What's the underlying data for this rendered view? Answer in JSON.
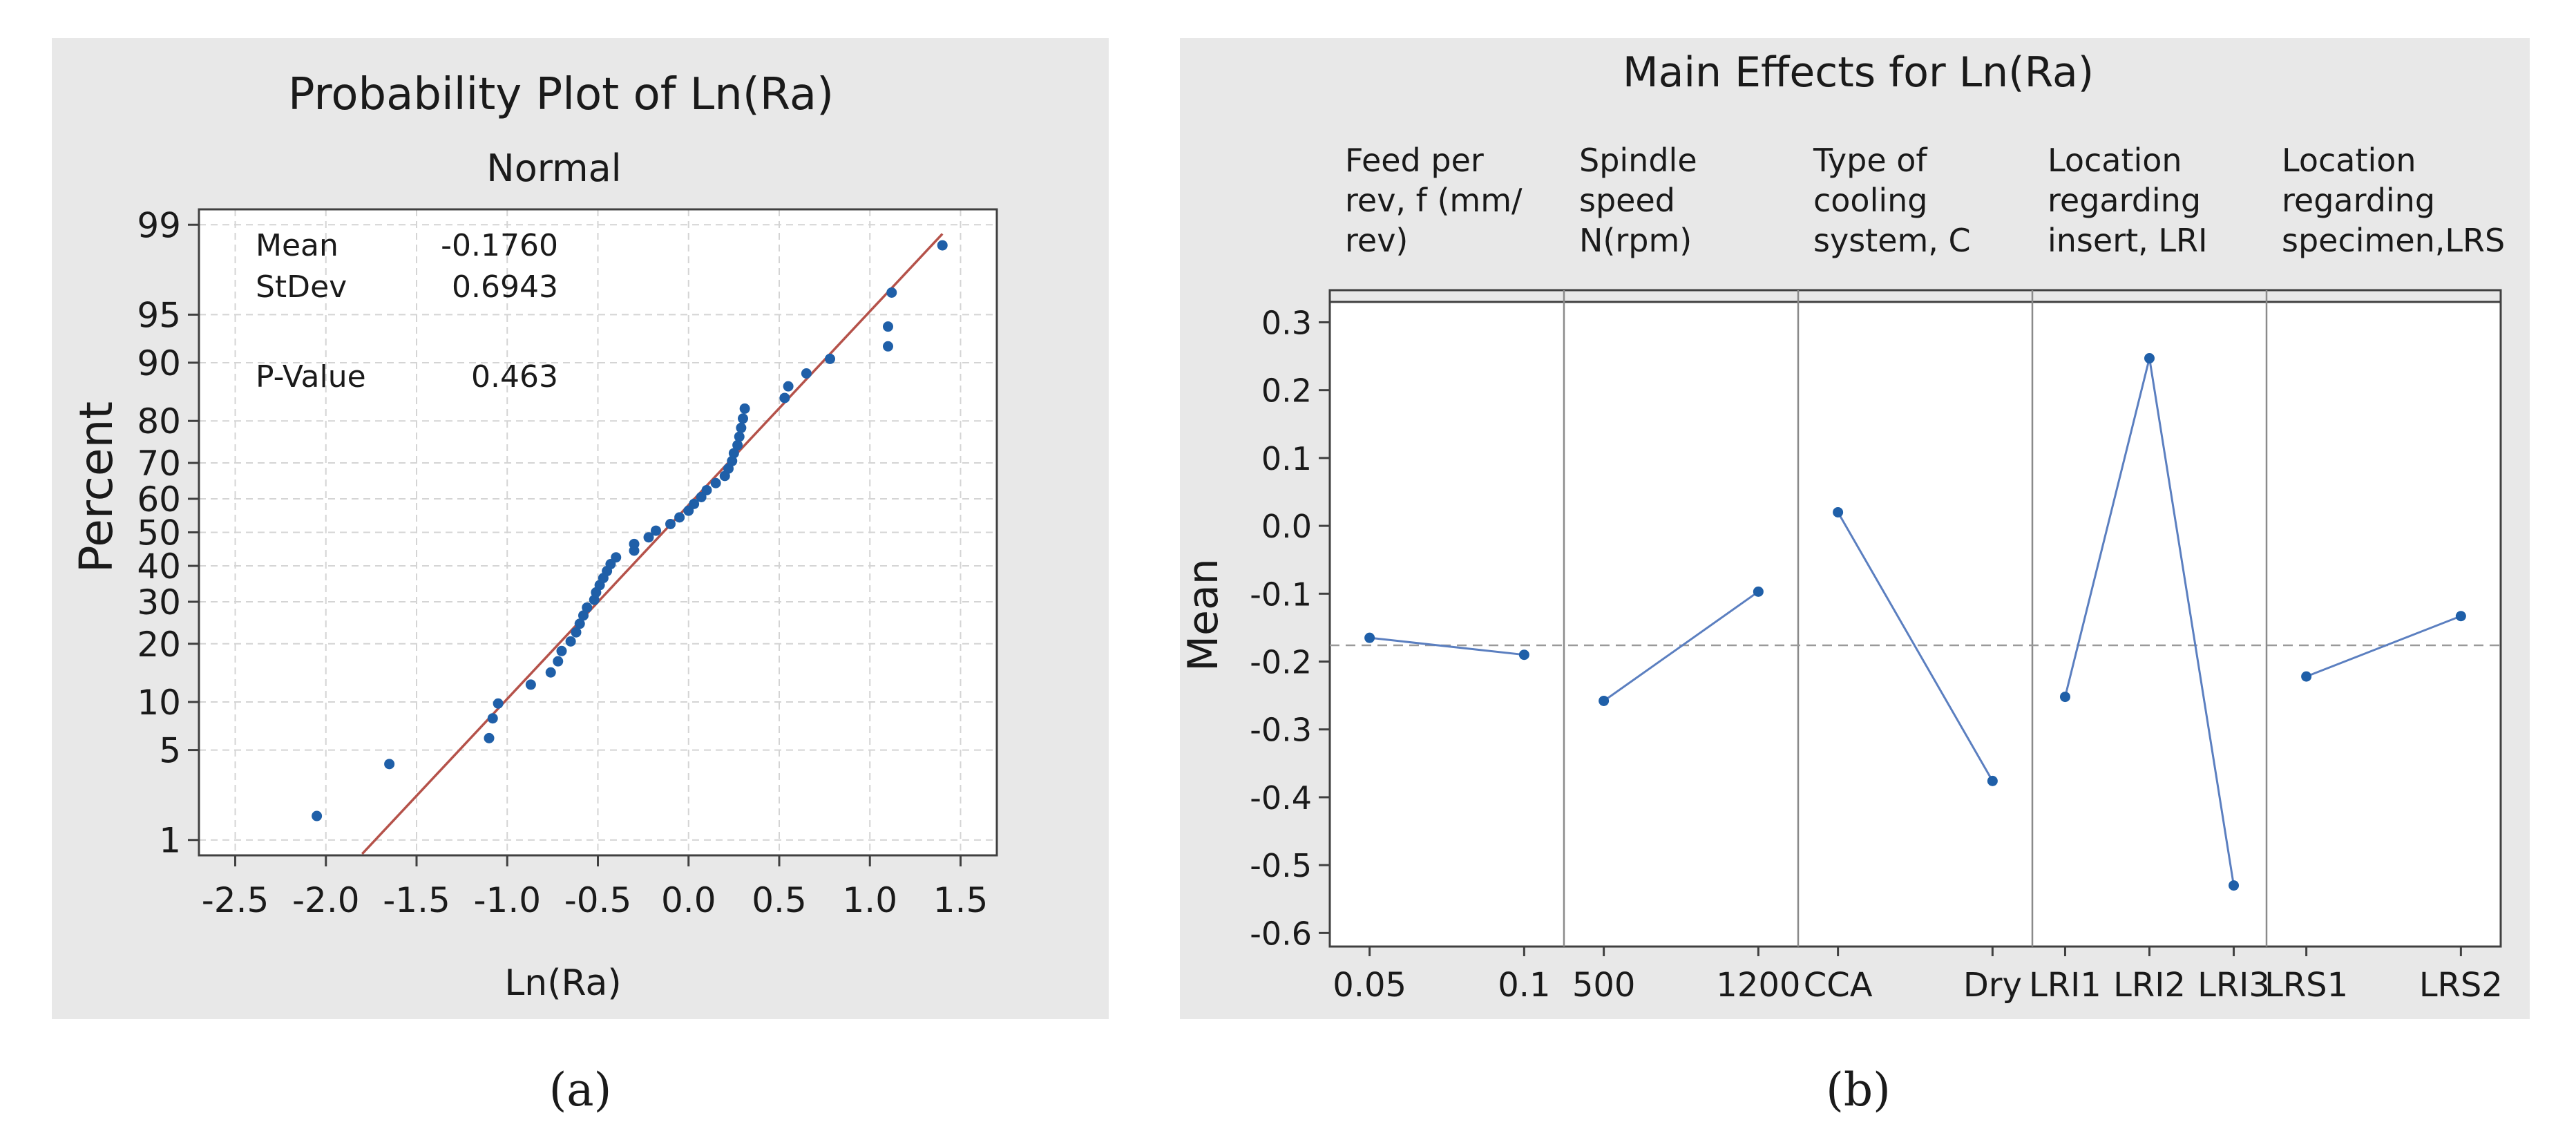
{
  "chart_data": [
    {
      "type": "scatter",
      "panel_label": "(a)",
      "title": "Probability Plot of Ln(Ra)",
      "subtitle": "Normal",
      "xlabel": "Ln(Ra)",
      "ylabel": "Percent",
      "xlim": [
        -2.7,
        1.7
      ],
      "x_ticks": [
        -2.5,
        -2.0,
        -1.5,
        -1.0,
        -0.5,
        0.0,
        0.5,
        1.0,
        1.5
      ],
      "x_tick_labels": [
        "-2.5",
        "-2.0",
        "-1.5",
        "-1.0",
        "-0.5",
        "0.0",
        "0.5",
        "1.0",
        "1.5"
      ],
      "y_ticks": [
        1,
        5,
        10,
        20,
        30,
        40,
        50,
        60,
        70,
        80,
        90,
        95,
        99
      ],
      "y_tick_labels": [
        "1",
        "5",
        "10",
        "20",
        "30",
        "40",
        "50",
        "60",
        "70",
        "80",
        "90",
        "95",
        "99"
      ],
      "grid": true,
      "stats": [
        {
          "label": "Mean",
          "value": "-0.1760"
        },
        {
          "label": "StDev",
          "value": "0.6943"
        },
        {
          "label": "P-Value",
          "value": "0.463"
        }
      ],
      "fit_line": {
        "x": [
          -1.8,
          1.4
        ],
        "y": [
          0.75,
          98.8
        ]
      },
      "points": [
        {
          "x": -2.05,
          "y": 1.6
        },
        {
          "x": -1.65,
          "y": 4.0
        },
        {
          "x": -1.1,
          "y": 6.0
        },
        {
          "x": -1.08,
          "y": 8.0
        },
        {
          "x": -1.05,
          "y": 9.8
        },
        {
          "x": -0.87,
          "y": 12.5
        },
        {
          "x": -0.76,
          "y": 14.5
        },
        {
          "x": -0.72,
          "y": 16.5
        },
        {
          "x": -0.7,
          "y": 18.5
        },
        {
          "x": -0.65,
          "y": 20.5
        },
        {
          "x": -0.62,
          "y": 22.5
        },
        {
          "x": -0.6,
          "y": 24.5
        },
        {
          "x": -0.58,
          "y": 26.5
        },
        {
          "x": -0.56,
          "y": 28.5
        },
        {
          "x": -0.52,
          "y": 30.5
        },
        {
          "x": -0.51,
          "y": 32.5
        },
        {
          "x": -0.49,
          "y": 34.5
        },
        {
          "x": -0.47,
          "y": 36.5
        },
        {
          "x": -0.45,
          "y": 38.5
        },
        {
          "x": -0.43,
          "y": 40.5
        },
        {
          "x": -0.4,
          "y": 42.5
        },
        {
          "x": -0.3,
          "y": 44.5
        },
        {
          "x": -0.3,
          "y": 46.5
        },
        {
          "x": -0.22,
          "y": 48.5
        },
        {
          "x": -0.18,
          "y": 50.5
        },
        {
          "x": -0.1,
          "y": 52.5
        },
        {
          "x": -0.05,
          "y": 54.5
        },
        {
          "x": 0.0,
          "y": 56.5
        },
        {
          "x": 0.03,
          "y": 58.5
        },
        {
          "x": 0.07,
          "y": 60.5
        },
        {
          "x": 0.1,
          "y": 62.5
        },
        {
          "x": 0.15,
          "y": 64.5
        },
        {
          "x": 0.2,
          "y": 66.5
        },
        {
          "x": 0.22,
          "y": 68.5
        },
        {
          "x": 0.24,
          "y": 70.5
        },
        {
          "x": 0.25,
          "y": 72.5
        },
        {
          "x": 0.27,
          "y": 74.5
        },
        {
          "x": 0.28,
          "y": 76.5
        },
        {
          "x": 0.29,
          "y": 78.5
        },
        {
          "x": 0.3,
          "y": 80.5
        },
        {
          "x": 0.31,
          "y": 82.5
        },
        {
          "x": 0.53,
          "y": 84.5
        },
        {
          "x": 0.55,
          "y": 86.5
        },
        {
          "x": 0.65,
          "y": 88.5
        },
        {
          "x": 0.78,
          "y": 90.5
        },
        {
          "x": 1.1,
          "y": 92.0
        },
        {
          "x": 1.1,
          "y": 94.0
        },
        {
          "x": 1.12,
          "y": 96.5
        },
        {
          "x": 1.4,
          "y": 98.5
        }
      ]
    },
    {
      "type": "line",
      "panel_label": "(b)",
      "title": "Main Effects for Ln(Ra)",
      "ylabel": "Mean",
      "ylim": [
        -0.62,
        0.33
      ],
      "y_ticks": [
        0.3,
        0.2,
        0.1,
        0.0,
        -0.1,
        -0.2,
        -0.3,
        -0.4,
        -0.5,
        -0.6
      ],
      "y_tick_labels": [
        "0.3",
        "0.2",
        "0.1",
        "0.0",
        "-0.1",
        "-0.2",
        "-0.3",
        "-0.4",
        "-0.5",
        "-0.6"
      ],
      "reference_line": -0.176,
      "factors": [
        {
          "header": [
            "Feed per",
            "rev, f (mm/",
            "rev)"
          ],
          "levels": [
            "0.05",
            "0.1"
          ],
          "values": [
            -0.165,
            -0.19
          ]
        },
        {
          "header": [
            "Spindle",
            "speed",
            "N(rpm)"
          ],
          "levels": [
            "500",
            "1200"
          ],
          "values": [
            -0.258,
            -0.097
          ]
        },
        {
          "header": [
            "Type of",
            "cooling",
            "system, C"
          ],
          "levels": [
            "CCA",
            "Dry"
          ],
          "values": [
            0.02,
            -0.376
          ]
        },
        {
          "header": [
            "Location",
            "regarding",
            "insert, LRI"
          ],
          "levels": [
            "LRI1",
            "LRI2",
            "LRI3"
          ],
          "values": [
            -0.252,
            0.247,
            -0.53
          ]
        },
        {
          "header": [
            "Location",
            "regarding",
            "specimen,LRS"
          ],
          "levels": [
            "LRS1",
            "LRS2"
          ],
          "values": [
            -0.222,
            -0.133
          ]
        }
      ]
    }
  ],
  "colors": {
    "panel_bg": "#e8e8e8",
    "plot_bg": "#ffffff",
    "point": "#1f5fa8",
    "fit_line": "#b5524a",
    "effect_line": "#5b7fc0",
    "grid": "#d4d4d4",
    "axis": "#404040",
    "reference": "#9a9a9a"
  }
}
